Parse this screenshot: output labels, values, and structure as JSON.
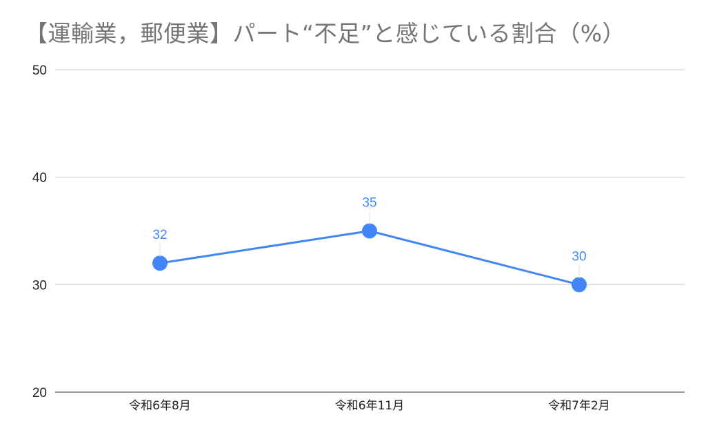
{
  "chart_data": {
    "type": "line",
    "title": "【運輸業，郵便業】パート“不足”と感じている割合（%）",
    "categories": [
      "令和6年8月",
      "令和6年11月",
      "令和7年2月"
    ],
    "series": [
      {
        "values": [
          32,
          35,
          30
        ]
      }
    ],
    "data_labels": [
      "32",
      "35",
      "30"
    ],
    "y_ticks": [
      "20",
      "30",
      "40",
      "50"
    ],
    "ylim": [
      20,
      50
    ],
    "grid": true,
    "legend": "none",
    "colors": {
      "series": "#4285f4",
      "grid": "#cccccc",
      "text": "#222222",
      "title": "#757575"
    }
  }
}
